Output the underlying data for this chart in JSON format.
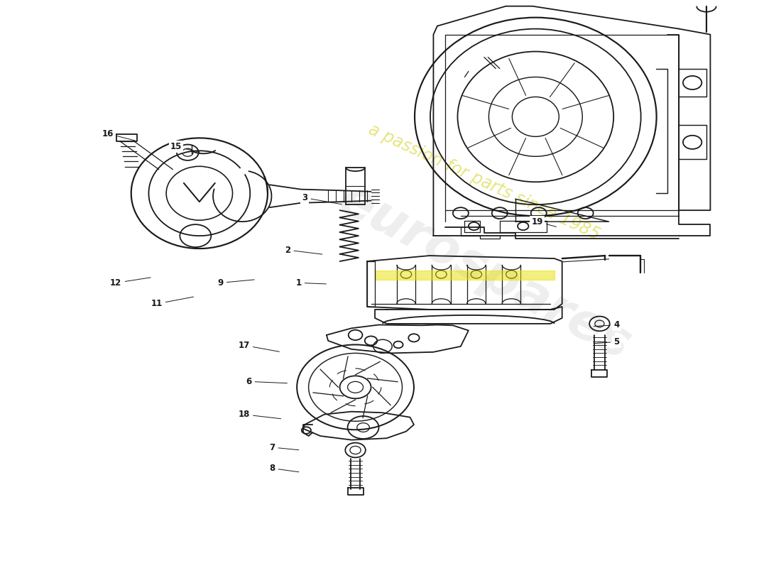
{
  "background_color": "#ffffff",
  "line_color": "#1a1a1a",
  "lw": 1.3,
  "watermark1": "eurospares",
  "watermark2": "a passion for parts since 1985",
  "parts_labels": [
    [
      1,
      0.382,
      0.498,
      0.42,
      0.5
    ],
    [
      2,
      0.368,
      0.44,
      0.415,
      0.448
    ],
    [
      3,
      0.39,
      0.348,
      0.44,
      0.36
    ],
    [
      4,
      0.79,
      0.572,
      0.758,
      0.575
    ],
    [
      5,
      0.79,
      0.602,
      0.758,
      0.605
    ],
    [
      6,
      0.318,
      0.672,
      0.37,
      0.675
    ],
    [
      7,
      0.348,
      0.788,
      0.385,
      0.793
    ],
    [
      8,
      0.348,
      0.825,
      0.385,
      0.832
    ],
    [
      9,
      0.282,
      0.498,
      0.328,
      0.492
    ],
    [
      11,
      0.2,
      0.535,
      0.25,
      0.522
    ],
    [
      12,
      0.148,
      0.498,
      0.195,
      0.488
    ],
    [
      15,
      0.225,
      0.258,
      0.258,
      0.268
    ],
    [
      16,
      0.138,
      0.235,
      0.175,
      0.248
    ],
    [
      17,
      0.312,
      0.608,
      0.36,
      0.62
    ],
    [
      18,
      0.312,
      0.73,
      0.362,
      0.738
    ],
    [
      19,
      0.688,
      0.39,
      0.715,
      0.4
    ]
  ]
}
